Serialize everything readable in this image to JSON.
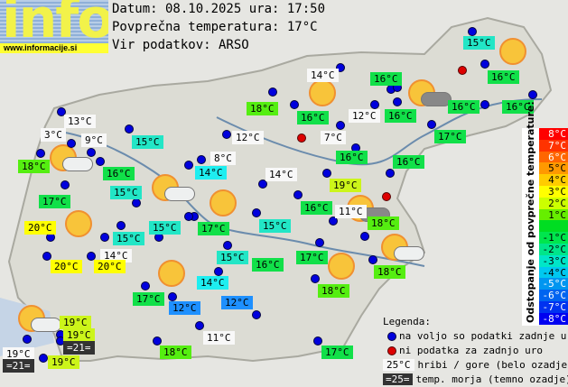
{
  "logo": {
    "text": "info",
    "url": "www.informacije.si"
  },
  "header": {
    "date_line": "Datum: 08.10.2025 ura: 17:50",
    "avg_line": "Povprečna temperatura: 17°C",
    "source_line": "Vir podatkov: ARSO"
  },
  "colors": {
    "white": "#f8f8f8",
    "dark": "#333333",
    "green": "#11e049",
    "lime": "#55ee11",
    "ylime": "#ccf51a",
    "yellow": "#ffff00",
    "cyan": "#22e6c6",
    "lcyan": "#1eeef0",
    "blue": "#1e90ff"
  },
  "stations": [
    {
      "t": "15°C",
      "c": "cyan"
    },
    {
      "t": "14°C",
      "c": "white"
    },
    {
      "t": "16°C",
      "c": "green"
    },
    {
      "t": "16°C",
      "c": "green"
    },
    {
      "t": "18°C",
      "c": "lime"
    },
    {
      "t": "16°C",
      "c": "green"
    },
    {
      "t": "12°C",
      "c": "white"
    },
    {
      "t": "16°C",
      "c": "green"
    },
    {
      "t": "16°C",
      "c": "green"
    },
    {
      "t": "16°C",
      "c": "green"
    },
    {
      "t": "17°C",
      "c": "green"
    },
    {
      "t": "12°C",
      "c": "white"
    },
    {
      "t": "7°C",
      "c": "white"
    },
    {
      "t": "16°C",
      "c": "green"
    },
    {
      "t": "16°C",
      "c": "green"
    },
    {
      "t": "8°C",
      "c": "white"
    },
    {
      "t": "14°C",
      "c": "lcyan"
    },
    {
      "t": "14°C",
      "c": "white"
    },
    {
      "t": "19°C",
      "c": "ylime"
    },
    {
      "t": "16°C",
      "c": "green"
    },
    {
      "t": "11°C",
      "c": "white"
    },
    {
      "t": "18°C",
      "c": "lime"
    },
    {
      "t": "17°C",
      "c": "green"
    },
    {
      "t": "15°C",
      "c": "cyan"
    },
    {
      "t": "13°C",
      "c": "white"
    },
    {
      "t": "3°C",
      "c": "white"
    },
    {
      "t": "9°C",
      "c": "white"
    },
    {
      "t": "18°C",
      "c": "lime"
    },
    {
      "t": "15°C",
      "c": "cyan"
    },
    {
      "t": "16°C",
      "c": "green"
    },
    {
      "t": "15°C",
      "c": "cyan"
    },
    {
      "t": "17°C",
      "c": "green"
    },
    {
      "t": "20°C",
      "c": "yellow"
    },
    {
      "t": "15°C",
      "c": "cyan"
    },
    {
      "t": "15°C",
      "c": "cyan"
    },
    {
      "t": "14°C",
      "c": "white"
    },
    {
      "t": "20°C",
      "c": "yellow"
    },
    {
      "t": "20°C",
      "c": "yellow"
    },
    {
      "t": "15°C",
      "c": "cyan"
    },
    {
      "t": "16°C",
      "c": "green"
    },
    {
      "t": "17°C",
      "c": "green"
    },
    {
      "t": "18°C",
      "c": "lime"
    },
    {
      "t": "14°C",
      "c": "lcyan"
    },
    {
      "t": "18°C",
      "c": "lime"
    },
    {
      "t": "17°C",
      "c": "green"
    },
    {
      "t": "12°C",
      "c": "blue"
    },
    {
      "t": "12°C",
      "c": "blue"
    },
    {
      "t": "19°C",
      "c": "ylime"
    },
    {
      "t": "19°C",
      "c": "ylime"
    },
    {
      "t": "=21=",
      "c": "dark"
    },
    {
      "t": "19°C",
      "c": "white"
    },
    {
      "t": "=21=",
      "c": "dark"
    },
    {
      "t": "19°C",
      "c": "ylime"
    },
    {
      "t": "11°C",
      "c": "white"
    },
    {
      "t": "18°C",
      "c": "lime"
    },
    {
      "t": "17°C",
      "c": "green"
    }
  ],
  "weather_icons": [
    "sun",
    "sun",
    "sun-dark-cloud",
    "sun-cloud",
    "sun-cloud",
    "sun",
    "sun",
    "sun-dark-cloud",
    "sun-cloud",
    "sun",
    "sun",
    "sun-cloud"
  ],
  "scale": {
    "title": "Odstopanje od povprečne temperature:",
    "steps": [
      {
        "t": "8°C",
        "c": "#ff0000"
      },
      {
        "t": "7°C",
        "c": "#ff3300"
      },
      {
        "t": "6°C",
        "c": "#ff6600"
      },
      {
        "t": "5°C",
        "c": "#ff9900"
      },
      {
        "t": "4°C",
        "c": "#ffcc00"
      },
      {
        "t": "3°C",
        "c": "#ffff00"
      },
      {
        "t": "2°C",
        "c": "#ccff00"
      },
      {
        "t": "1°C",
        "c": "#66ee00"
      },
      {
        "t": "",
        "c": "#00dd22"
      },
      {
        "t": "-1°C",
        "c": "#00e64d"
      },
      {
        "t": "-2°C",
        "c": "#00e68a"
      },
      {
        "t": "-3°C",
        "c": "#00e6c8"
      },
      {
        "t": "-4°C",
        "c": "#00c8f0"
      },
      {
        "t": "-5°C",
        "c": "#0096f0"
      },
      {
        "t": "-6°C",
        "c": "#0064f0"
      },
      {
        "t": "-7°C",
        "c": "#0032f0"
      },
      {
        "t": "-8°C",
        "c": "#0000f0"
      }
    ]
  },
  "legend": {
    "title": "Legenda:",
    "blue_dot": "na voljo so podatki zadnje ure",
    "red_dot": "ni podatka za zadnjo uro",
    "mountain_sample": "25°C",
    "mountain": "hribi / gore (belo ozadje)",
    "sea_sample": "=25=",
    "sea": "temp. morja (temno ozadje)"
  }
}
